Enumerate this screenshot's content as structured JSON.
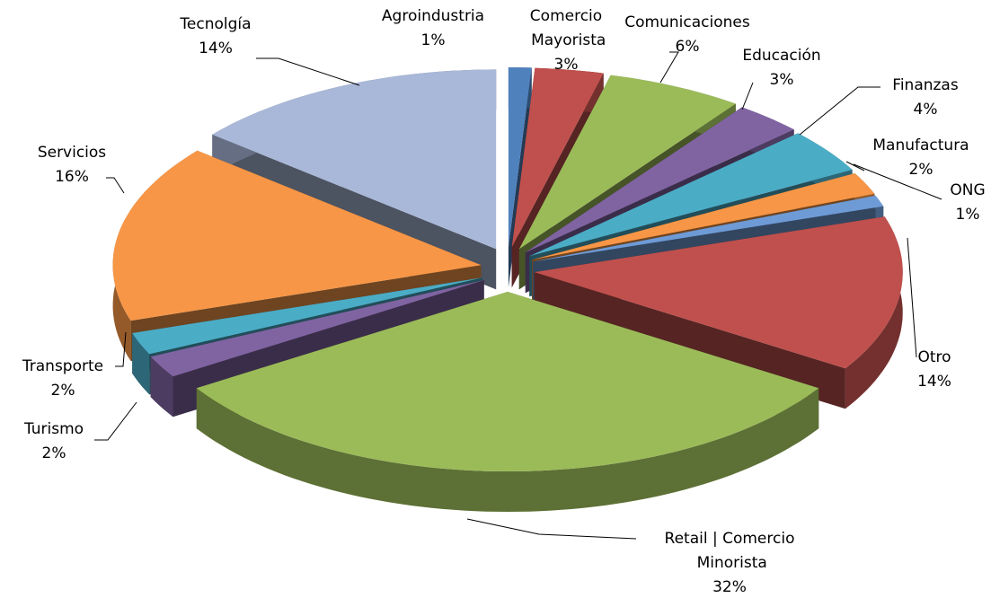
{
  "chart_data": {
    "type": "pie3d",
    "categories": [
      "Agroindustria",
      "Comercio Mayorista",
      "Comunicaciones",
      "Educación",
      "Finanzas",
      "Manufactura",
      "ONG",
      "Otro",
      "Retail | Comercio Minorista",
      "Turismo",
      "Transporte",
      "Servicios",
      "Tecnolgía"
    ],
    "values": [
      1,
      3,
      6,
      3,
      4,
      2,
      1,
      14,
      32,
      2,
      2,
      16,
      14
    ],
    "value_labels": [
      "1%",
      "3%",
      "6%",
      "3%",
      "4%",
      "2%",
      "1%",
      "14%",
      "32%",
      "2%",
      "2%",
      "16%",
      "14%"
    ],
    "colors": [
      "#4f81bd",
      "#c0504d",
      "#9bbb59",
      "#8064a2",
      "#4bacc6",
      "#f79646",
      "#6e9bd6",
      "#c0504d",
      "#9bbb59",
      "#8064a2",
      "#4bacc6",
      "#f79646",
      "#a9b8d8"
    ]
  }
}
